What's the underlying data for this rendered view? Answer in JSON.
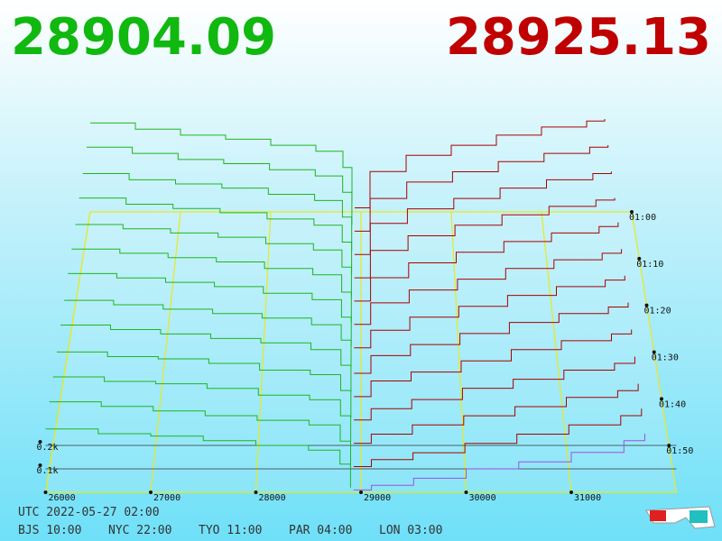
{
  "header": {
    "bid_price": "28904.09",
    "ask_price": "28925.13"
  },
  "chart_data": {
    "type": "depth3d",
    "bid_color": "#1fb51f",
    "ask_color": "#a80000",
    "last_ask_color": "#a050e0",
    "price_ticks": [
      26000,
      27000,
      28000,
      29000,
      30000,
      31000
    ],
    "xlim": [
      26000,
      32000
    ],
    "depth_ticks": [
      {
        "value": 0.1,
        "label": "0.1k"
      },
      {
        "value": 0.2,
        "label": "0.2k"
      }
    ],
    "time_labels": [
      "01:00",
      "01:10",
      "01:20",
      "01:30",
      "01:40",
      "01:50"
    ],
    "bid_prices": [
      26000,
      26500,
      27000,
      27500,
      28000,
      28500,
      28800,
      28900
    ],
    "ask_prices": [
      28930,
      29100,
      29500,
      30000,
      30500,
      31000,
      31500,
      31700
    ],
    "bids": [
      [
        0.44,
        0.41,
        0.38,
        0.36,
        0.33,
        0.3,
        0.22,
        0.05
      ],
      [
        0.43,
        0.4,
        0.37,
        0.35,
        0.32,
        0.29,
        0.21,
        0.05
      ],
      [
        0.41,
        0.38,
        0.36,
        0.34,
        0.31,
        0.28,
        0.2,
        0.04
      ],
      [
        0.4,
        0.37,
        0.35,
        0.33,
        0.3,
        0.27,
        0.19,
        0.04
      ],
      [
        0.38,
        0.36,
        0.34,
        0.32,
        0.29,
        0.26,
        0.18,
        0.04
      ],
      [
        0.37,
        0.35,
        0.33,
        0.31,
        0.28,
        0.25,
        0.17,
        0.03
      ],
      [
        0.36,
        0.34,
        0.32,
        0.3,
        0.27,
        0.24,
        0.16,
        0.03
      ],
      [
        0.34,
        0.32,
        0.3,
        0.28,
        0.26,
        0.23,
        0.16,
        0.03
      ],
      [
        0.33,
        0.31,
        0.29,
        0.27,
        0.25,
        0.22,
        0.15,
        0.03
      ],
      [
        0.31,
        0.29,
        0.28,
        0.26,
        0.23,
        0.21,
        0.14,
        0.02
      ],
      [
        0.3,
        0.28,
        0.27,
        0.25,
        0.22,
        0.2,
        0.13,
        0.02
      ],
      [
        0.29,
        0.27,
        0.25,
        0.23,
        0.21,
        0.19,
        0.12,
        0.02
      ],
      [
        0.27,
        0.25,
        0.24,
        0.22,
        0.2,
        0.18,
        0.12,
        0.02
      ]
    ],
    "asks": [
      [
        0.02,
        0.2,
        0.28,
        0.33,
        0.38,
        0.42,
        0.45,
        0.46
      ],
      [
        0.02,
        0.18,
        0.26,
        0.31,
        0.36,
        0.4,
        0.43,
        0.44
      ],
      [
        0.02,
        0.17,
        0.24,
        0.29,
        0.34,
        0.38,
        0.41,
        0.42
      ],
      [
        0.02,
        0.15,
        0.22,
        0.27,
        0.32,
        0.36,
        0.39,
        0.4
      ],
      [
        0.02,
        0.13,
        0.2,
        0.25,
        0.3,
        0.34,
        0.37,
        0.39
      ],
      [
        0.02,
        0.12,
        0.18,
        0.23,
        0.28,
        0.32,
        0.35,
        0.37
      ],
      [
        0.02,
        0.1,
        0.16,
        0.21,
        0.26,
        0.3,
        0.33,
        0.35
      ],
      [
        0.01,
        0.09,
        0.14,
        0.19,
        0.24,
        0.28,
        0.31,
        0.33
      ],
      [
        0.01,
        0.08,
        0.12,
        0.17,
        0.22,
        0.26,
        0.29,
        0.31
      ],
      [
        0.01,
        0.06,
        0.1,
        0.15,
        0.19,
        0.23,
        0.26,
        0.29
      ],
      [
        0.01,
        0.05,
        0.09,
        0.13,
        0.17,
        0.21,
        0.24,
        0.27
      ],
      [
        0.01,
        0.04,
        0.07,
        0.11,
        0.15,
        0.19,
        0.23,
        0.26
      ],
      [
        0.01,
        0.03,
        0.06,
        0.1,
        0.13,
        0.17,
        0.22,
        0.25
      ]
    ]
  },
  "footer": {
    "utc": "UTC 2022-05-27 02:00",
    "cities": [
      "BJS 10:00",
      "NYC 22:00",
      "TYO 11:00",
      "PAR 04:00",
      "LON 03:00"
    ]
  }
}
